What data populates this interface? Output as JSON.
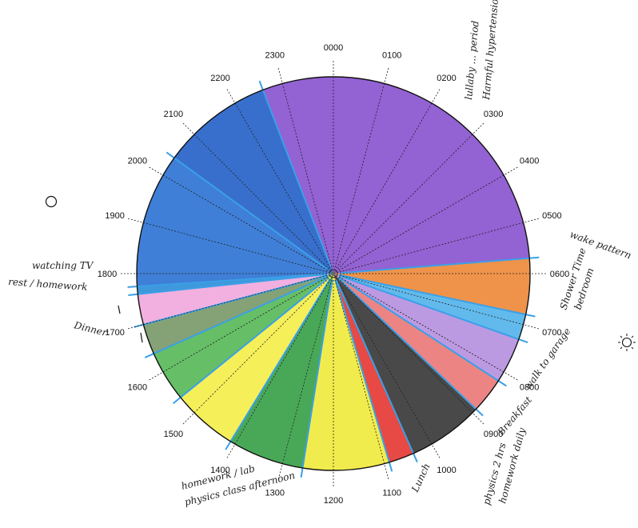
{
  "diagram": {
    "type": "24-hour activity clock",
    "hour_labels": [
      "0000",
      "0100",
      "0200",
      "0300",
      "0400",
      "0500",
      "0600",
      "0700",
      "0800",
      "0900",
      "1000",
      "1100",
      "1200",
      "1300",
      "1400",
      "1500",
      "1600",
      "1700",
      "1800",
      "1900",
      "2000",
      "2100",
      "2200",
      "2300"
    ],
    "segments": [
      {
        "start_hour": 22.6,
        "end_hour": 5.7,
        "color": "#8a55cf"
      },
      {
        "start_hour": 5.7,
        "end_hour": 6.8,
        "color": "#ee8a3c"
      },
      {
        "start_hour": 6.8,
        "end_hour": 7.3,
        "color": "#55b4ea"
      },
      {
        "start_hour": 7.3,
        "end_hour": 8.2,
        "color": "#b691e0"
      },
      {
        "start_hour": 8.2,
        "end_hour": 8.9,
        "color": "#ec7a7a"
      },
      {
        "start_hour": 8.9,
        "end_hour": 10.4,
        "color": "#3a3a3a"
      },
      {
        "start_hour": 10.4,
        "end_hour": 10.9,
        "color": "#e53a35"
      },
      {
        "start_hour": 10.9,
        "end_hour": 12.6,
        "color": "#f0ea3e"
      },
      {
        "start_hour": 12.6,
        "end_hour": 14.1,
        "color": "#3aa14a"
      },
      {
        "start_hour": 14.1,
        "end_hour": 15.4,
        "color": "#f4ee4c"
      },
      {
        "start_hour": 15.4,
        "end_hour": 16.4,
        "color": "#59b85a"
      },
      {
        "start_hour": 16.4,
        "end_hour": 17.0,
        "color": "#7a9a6a"
      },
      {
        "start_hour": 17.0,
        "end_hour": 17.6,
        "color": "#f0a9dc"
      },
      {
        "start_hour": 17.6,
        "end_hour": 17.75,
        "color": "#2f8fd8"
      },
      {
        "start_hour": 17.75,
        "end_hour": 20.4,
        "color": "#2f74d4"
      },
      {
        "start_hour": 20.4,
        "end_hour": 22.6,
        "color": "#2763c8"
      }
    ],
    "boundary_line_color": "#3aa0e8",
    "annotations": [
      {
        "text": "Harmful hypertension"
      },
      {
        "text": "lullaby ... period"
      },
      {
        "text": "wake pattern"
      },
      {
        "text": "Shower Time"
      },
      {
        "text": "bedroom"
      },
      {
        "text": "walk to garage"
      },
      {
        "text": "Breakfast"
      },
      {
        "text": "physics 2 hrs"
      },
      {
        "text": "homework daily"
      },
      {
        "text": "Lunch"
      },
      {
        "text": "homework / lab"
      },
      {
        "text": "physics class afternoon"
      },
      {
        "text": "Dinner"
      },
      {
        "text": "watching TV"
      },
      {
        "text": "rest / homework"
      }
    ],
    "moon_icon": "moon-icon",
    "sun_icon": "sun-icon"
  }
}
